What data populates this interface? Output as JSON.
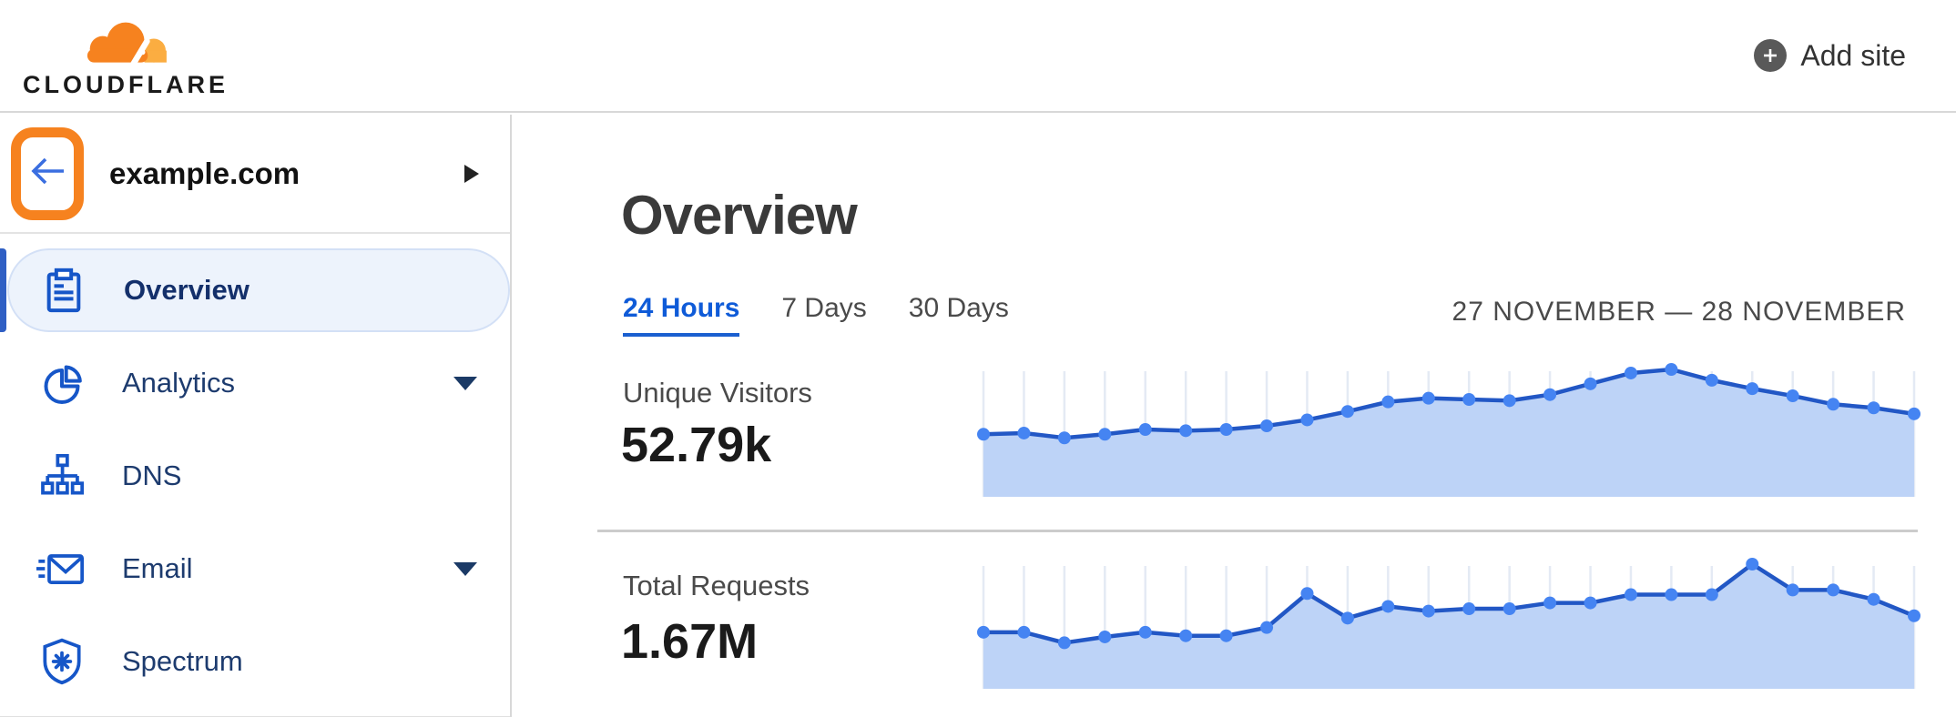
{
  "header": {
    "logo_text": "CLOUDFLARE",
    "add_site_label": "Add site"
  },
  "sidebar": {
    "site": {
      "name": "example.com"
    },
    "items": [
      {
        "label": "Overview",
        "icon": "clipboard-icon",
        "active": true,
        "expandable": false
      },
      {
        "label": "Analytics",
        "icon": "pie-chart-icon",
        "active": false,
        "expandable": true
      },
      {
        "label": "DNS",
        "icon": "dns-tree-icon",
        "active": false,
        "expandable": false
      },
      {
        "label": "Email",
        "icon": "envelope-icon",
        "active": false,
        "expandable": true
      },
      {
        "label": "Spectrum",
        "icon": "shield-icon",
        "active": false,
        "expandable": false
      }
    ]
  },
  "main": {
    "title": "Overview",
    "tabs": [
      {
        "label": "24 Hours",
        "active": true
      },
      {
        "label": "7 Days",
        "active": false
      },
      {
        "label": "30 Days",
        "active": false
      }
    ],
    "date_range": "27 NOVEMBER — 28 NOVEMBER"
  },
  "chart_data": [
    {
      "type": "area",
      "title": "Unique Visitors",
      "total": "52.79k",
      "x_axis": "24 hourly points, 27–28 November (tick labels not shown)",
      "ylim": [
        0,
        100
      ],
      "units": "relative height, % of series max (no y-axis labels shown)",
      "grid": "vertical gridlines only, one per point",
      "legend": "none",
      "values": [
        46,
        47,
        43,
        46,
        50,
        49,
        50,
        53,
        58,
        65,
        73,
        76,
        75,
        74,
        79,
        88,
        97,
        100,
        91,
        84,
        78,
        71,
        68,
        63
      ]
    },
    {
      "type": "area",
      "title": "Total Requests",
      "total": "1.67M",
      "x_axis": "24 hourly points, 27–28 November (tick labels not shown)",
      "ylim": [
        0,
        100
      ],
      "units": "relative height, % of series max (no y-axis labels shown)",
      "grid": "vertical gridlines only, one per point",
      "legend": "none",
      "values": [
        42,
        42,
        33,
        38,
        42,
        39,
        39,
        46,
        75,
        54,
        64,
        60,
        62,
        62,
        67,
        67,
        74,
        74,
        74,
        100,
        78,
        78,
        70,
        56
      ]
    }
  ],
  "colors": {
    "brand_orange": "#f6821f",
    "brand_orange_light": "#fbad41",
    "link_blue": "#0f5bd8",
    "nav_text": "#1d3b6e",
    "icon_blue": "#1656c8",
    "chart_line": "#2257c5",
    "chart_dot": "#4584f2",
    "chart_fill": "#bdd3f7",
    "chart_grid": "#e4eaf4",
    "active_item_bg": "#edf3fc",
    "active_item_border": "#d3e0f6"
  }
}
